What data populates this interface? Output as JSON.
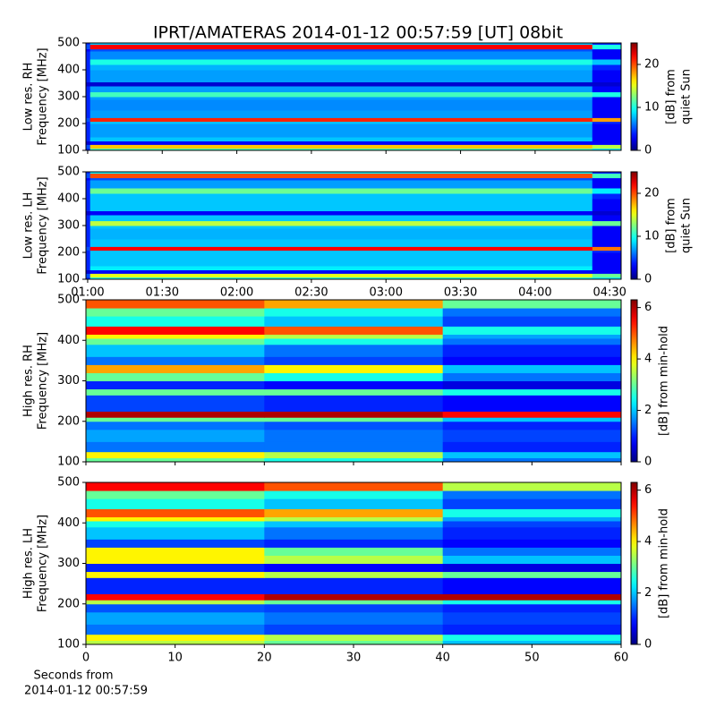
{
  "title": "IPRT/AMATERAS 2014-01-12 00:57:59 [UT]   08bit",
  "chart_data": [
    {
      "type": "heatmap",
      "colormap": "jet",
      "ylabel": [
        "Low res. RH",
        "Frequency [MHz]"
      ],
      "colorbar_label": [
        "[dB] from",
        "quiet Sun"
      ],
      "xlim": [
        59.3,
        274.6
      ],
      "xticks": [
        {
          "value": 60,
          "label": "01:00"
        },
        {
          "value": 90,
          "label": "01:30"
        },
        {
          "value": 120,
          "label": "02:00"
        },
        {
          "value": 150,
          "label": "02:30"
        },
        {
          "value": 180,
          "label": "03:00"
        },
        {
          "value": 210,
          "label": "03:30"
        },
        {
          "value": 240,
          "label": "04:00"
        },
        {
          "value": 270,
          "label": "04:30"
        }
      ],
      "xticklabels": false,
      "ylim": [
        100,
        500
      ],
      "yticks": [
        100,
        200,
        300,
        400,
        500
      ],
      "clim": [
        0,
        25
      ],
      "cticks": [
        0,
        10,
        20
      ],
      "xbins": [
        59.3,
        61,
        263,
        274.6
      ],
      "ybins": [
        100,
        108,
        122,
        135,
        150,
        200,
        208,
        222,
        250,
        290,
        300,
        318,
        340,
        355,
        400,
        420,
        440,
        470,
        478,
        495,
        500
      ],
      "values": [
        [
          4,
          11,
          9
        ],
        [
          5,
          17,
          14
        ],
        [
          2,
          3,
          3
        ],
        [
          4,
          8,
          3
        ],
        [
          4,
          7,
          3
        ],
        [
          4,
          8,
          4
        ],
        [
          5,
          21,
          18
        ],
        [
          4,
          7,
          3
        ],
        [
          4,
          6.5,
          3
        ],
        [
          4,
          7,
          3
        ],
        [
          4,
          11,
          10
        ],
        [
          4,
          7,
          3
        ],
        [
          2,
          2,
          2
        ],
        [
          4,
          7,
          3
        ],
        [
          4,
          7.5,
          4
        ],
        [
          4,
          10,
          8
        ],
        [
          4,
          6.5,
          3
        ],
        [
          3,
          5,
          3
        ],
        [
          5,
          22,
          10
        ],
        [
          4,
          8,
          4
        ]
      ]
    },
    {
      "type": "heatmap",
      "colormap": "jet",
      "ylabel": [
        "Low res. LH",
        "Frequency [MHz]"
      ],
      "colorbar_label": [
        "[dB] from",
        "quiet Sun"
      ],
      "xlim": [
        59.3,
        274.6
      ],
      "xticks": [
        {
          "value": 60,
          "label": "01:00"
        },
        {
          "value": 90,
          "label": "01:30"
        },
        {
          "value": 120,
          "label": "02:00"
        },
        {
          "value": 150,
          "label": "02:30"
        },
        {
          "value": 180,
          "label": "03:00"
        },
        {
          "value": 210,
          "label": "03:30"
        },
        {
          "value": 240,
          "label": "04:00"
        },
        {
          "value": 270,
          "label": "04:30"
        }
      ],
      "xticklabels": true,
      "ylim": [
        100,
        500
      ],
      "yticks": [
        100,
        200,
        300,
        400,
        500
      ],
      "clim": [
        0,
        25
      ],
      "cticks": [
        0,
        10,
        20
      ],
      "xbins": [
        59.3,
        61,
        263,
        274.6
      ],
      "ybins": [
        100,
        108,
        122,
        135,
        150,
        200,
        208,
        222,
        250,
        290,
        300,
        318,
        340,
        355,
        400,
        420,
        440,
        470,
        478,
        495,
        500
      ],
      "values": [
        [
          4,
          10,
          9
        ],
        [
          5,
          15,
          12
        ],
        [
          2,
          3,
          3
        ],
        [
          4,
          9,
          3
        ],
        [
          4,
          8,
          3
        ],
        [
          4,
          8,
          4
        ],
        [
          5,
          22,
          19
        ],
        [
          4,
          8,
          3
        ],
        [
          4,
          7.5,
          3
        ],
        [
          4,
          8,
          3
        ],
        [
          4,
          14,
          12
        ],
        [
          4,
          8,
          3
        ],
        [
          2,
          3,
          2
        ],
        [
          4,
          8,
          3
        ],
        [
          4,
          8,
          4
        ],
        [
          4,
          12,
          9
        ],
        [
          4,
          7,
          3
        ],
        [
          3,
          5,
          3
        ],
        [
          5,
          20,
          11
        ],
        [
          4,
          9,
          4
        ]
      ]
    },
    {
      "type": "heatmap",
      "colormap": "jet",
      "ylabel": [
        "High res. RH",
        "Frequency [MHz]"
      ],
      "colorbar_label": [
        "[dB] from min-hold"
      ],
      "xlim": [
        0,
        60
      ],
      "xticks": [
        0,
        10,
        20,
        30,
        40,
        50,
        60
      ],
      "xticklabels": false,
      "ylim": [
        100,
        500
      ],
      "yticks": [
        100,
        200,
        300,
        400,
        500
      ],
      "clim": [
        0,
        6.3
      ],
      "cticks": [
        0,
        2,
        4,
        6
      ],
      "xbins": [
        0,
        20,
        40,
        60
      ],
      "ybins": [
        100,
        110,
        125,
        150,
        180,
        200,
        210,
        225,
        265,
        280,
        300,
        320,
        340,
        360,
        390,
        405,
        415,
        435,
        460,
        480,
        500
      ],
      "values": [
        [
          3,
          2.5,
          1.5
        ],
        [
          4,
          3.5,
          2
        ],
        [
          1.5,
          1.5,
          1
        ],
        [
          1.8,
          1.5,
          1.2
        ],
        [
          1.5,
          1.3,
          1
        ],
        [
          3,
          3,
          2
        ],
        [
          6,
          6,
          5.5
        ],
        [
          1.2,
          1,
          0.8
        ],
        [
          3,
          3,
          2.5
        ],
        [
          1,
          0.8,
          0.6
        ],
        [
          3,
          2.5,
          1.5
        ],
        [
          4.5,
          4,
          2
        ],
        [
          1.5,
          1.2,
          0.8
        ],
        [
          2,
          1.5,
          1
        ],
        [
          3,
          2.5,
          1.5
        ],
        [
          4,
          3.5,
          1.8
        ],
        [
          5.5,
          5,
          2.5
        ],
        [
          2.5,
          2,
          1.2
        ],
        [
          3,
          2.5,
          1.5
        ],
        [
          5,
          4.5,
          3
        ]
      ]
    },
    {
      "type": "heatmap",
      "colormap": "jet",
      "ylabel": [
        "High res. LH",
        "Frequency [MHz]"
      ],
      "colorbar_label": [
        "[dB] from min-hold"
      ],
      "xlim": [
        0,
        60
      ],
      "xticks": [
        0,
        10,
        20,
        30,
        40,
        50,
        60
      ],
      "xticklabels": true,
      "xlabel": [
        "Seconds from",
        "2014-01-12 00:57:59"
      ],
      "ylim": [
        100,
        500
      ],
      "yticks": [
        100,
        200,
        300,
        400,
        500
      ],
      "clim": [
        0,
        6.3
      ],
      "cticks": [
        0,
        2,
        4,
        6
      ],
      "xbins": [
        0,
        20,
        40,
        60
      ],
      "ybins": [
        100,
        110,
        125,
        150,
        180,
        200,
        210,
        225,
        265,
        280,
        300,
        320,
        340,
        360,
        390,
        405,
        415,
        435,
        460,
        480,
        500
      ],
      "values": [
        [
          3.5,
          3,
          2
        ],
        [
          4,
          3.5,
          2.5
        ],
        [
          1.5,
          1.2,
          1
        ],
        [
          1.8,
          1.5,
          1.2
        ],
        [
          1.3,
          1.2,
          1
        ],
        [
          3.5,
          3,
          2.5
        ],
        [
          5.5,
          6,
          6
        ],
        [
          1,
          1,
          0.8
        ],
        [
          4,
          3.5,
          3
        ],
        [
          1,
          0.8,
          0.6
        ],
        [
          4,
          3.5,
          2
        ],
        [
          4,
          3,
          1.5
        ],
        [
          1.2,
          1,
          0.8
        ],
        [
          2,
          1.5,
          1
        ],
        [
          2.5,
          2,
          1.2
        ],
        [
          4,
          3.5,
          1.8
        ],
        [
          5,
          4.5,
          2.5
        ],
        [
          2.5,
          2,
          1.2
        ],
        [
          3,
          2.5,
          1.5
        ],
        [
          5.5,
          5,
          3.5
        ]
      ]
    }
  ]
}
